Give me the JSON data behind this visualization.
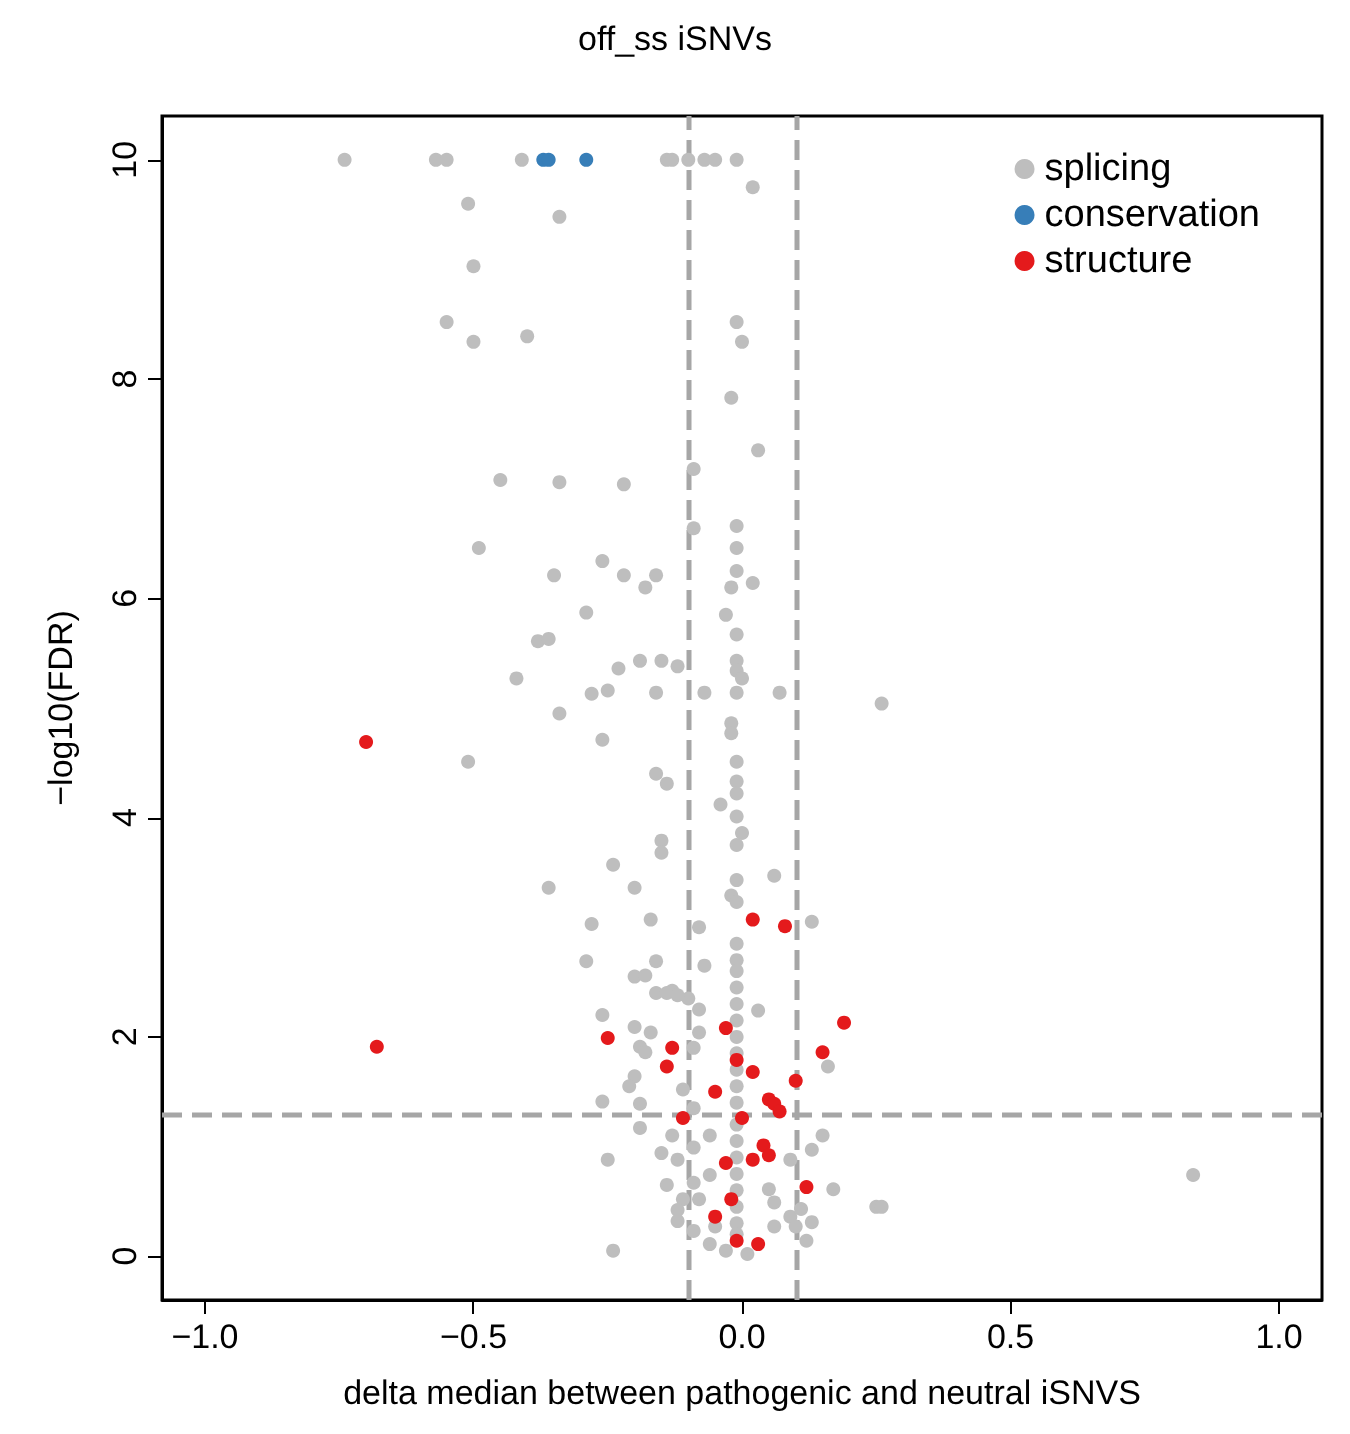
{
  "chart_data": {
    "type": "scatter",
    "title": "off_ss iSNVs",
    "xlabel": "delta median between pathogenic and neutral iSNVS",
    "ylabel": "−log10(FDR)",
    "xlim": [
      -1.08,
      1.08
    ],
    "ylim": [
      -0.4,
      10.4
    ],
    "xticks": [
      {
        "value": -1,
        "label": "−1.0"
      },
      {
        "value": -0.5,
        "label": "−0.5"
      },
      {
        "value": 0,
        "label": "0.0"
      },
      {
        "value": 0.5,
        "label": "0.5"
      },
      {
        "value": 1,
        "label": "1.0"
      }
    ],
    "yticks": [
      0,
      2,
      4,
      6,
      8,
      10
    ],
    "grid": false,
    "legend": "top right",
    "marker": "circle",
    "ref_lines": [
      {
        "axis": "x",
        "value": -0.1,
        "color": "#a6a6a6",
        "line_style": "dashed"
      },
      {
        "axis": "x",
        "value": 0.1,
        "color": "#a6a6a6",
        "line_style": "dashed"
      },
      {
        "axis": "y",
        "value": 1.3,
        "color": "#a6a6a6",
        "line_style": "dashed"
      }
    ],
    "series": [
      {
        "name": "splicing",
        "color": "#bebebe",
        "x": [
          -0.74,
          -0.57,
          -0.55,
          -0.41,
          -0.14,
          -0.13,
          -0.1,
          -0.07,
          -0.05,
          -0.01,
          0.02,
          -0.51,
          -0.34,
          -0.5,
          -0.55,
          -0.01,
          -0.5,
          -0.4,
          0.0,
          -0.02,
          0.03,
          -0.09,
          -0.45,
          -0.34,
          -0.22,
          -0.09,
          -0.01,
          -0.49,
          -0.01,
          -0.26,
          -0.35,
          -0.22,
          -0.16,
          -0.18,
          -0.01,
          -0.02,
          0.02,
          -0.29,
          -0.03,
          -0.38,
          -0.36,
          -0.01,
          -0.42,
          -0.23,
          -0.19,
          -0.15,
          -0.12,
          -0.01,
          -0.01,
          0.0,
          -0.28,
          -0.25,
          -0.16,
          -0.07,
          -0.01,
          0.07,
          0.26,
          -0.34,
          -0.51,
          -0.26,
          -0.02,
          -0.02,
          -0.01,
          -0.16,
          -0.14,
          -0.01,
          -0.01,
          -0.04,
          -0.01,
          0.0,
          -0.01,
          -0.15,
          -0.15,
          -0.24,
          0.06,
          -0.01,
          -0.36,
          -0.2,
          -0.02,
          -0.01,
          0.13,
          -0.28,
          -0.17,
          -0.08,
          -0.29,
          -0.16,
          -0.07,
          -0.2,
          -0.18,
          -0.16,
          -0.13,
          -0.1,
          -0.14,
          -0.12,
          -0.08,
          0.03,
          -0.26,
          -0.2,
          -0.17,
          -0.08,
          -0.19,
          -0.18,
          -0.09,
          0.16,
          -0.2,
          -0.21,
          -0.11,
          -0.26,
          -0.19,
          -0.09,
          -0.19,
          -0.13,
          -0.06,
          0.15,
          0.13,
          -0.15,
          -0.25,
          -0.12,
          -0.09,
          0.09,
          -0.14,
          -0.09,
          -0.06,
          0.05,
          0.17,
          -0.11,
          -0.08,
          0.06,
          0.25,
          0.26,
          -0.12,
          0.09,
          0.11,
          0.13,
          -0.12,
          -0.09,
          -0.05,
          0.06,
          0.1,
          -0.24,
          0.12,
          -0.06,
          0.01,
          -0.03,
          0.84,
          -0.01,
          -0.01,
          -0.01,
          -0.01,
          -0.01,
          -0.01,
          -0.01,
          -0.01,
          -0.01,
          -0.01,
          -0.01,
          -0.01,
          -0.01,
          -0.01,
          -0.01,
          -0.01,
          -0.01,
          -0.01,
          -0.01
        ],
        "values": [
          10,
          10,
          10,
          10,
          10,
          10,
          10,
          10,
          10,
          10,
          9.75,
          9.6,
          9.48,
          9.03,
          8.52,
          8.52,
          8.34,
          8.39,
          8.34,
          7.83,
          7.35,
          7.18,
          7.08,
          7.06,
          7.04,
          6.64,
          6.66,
          6.46,
          6.46,
          6.34,
          6.21,
          6.21,
          6.21,
          6.1,
          6.25,
          6.1,
          6.14,
          5.87,
          5.85,
          5.61,
          5.63,
          5.67,
          5.27,
          5.36,
          5.43,
          5.43,
          5.38,
          5.43,
          5.34,
          5.27,
          5.13,
          5.16,
          5.14,
          5.14,
          5.14,
          5.14,
          5.04,
          4.95,
          4.51,
          4.71,
          4.86,
          4.77,
          4.51,
          4.4,
          4.31,
          4.33,
          4.22,
          4.12,
          4.01,
          3.86,
          3.75,
          3.79,
          3.68,
          3.57,
          3.47,
          3.43,
          3.36,
          3.36,
          3.29,
          3.23,
          3.05,
          3.03,
          3.07,
          3.0,
          2.69,
          2.69,
          2.65,
          2.55,
          2.56,
          2.4,
          2.42,
          2.35,
          2.4,
          2.38,
          2.25,
          2.24,
          2.2,
          2.09,
          2.04,
          2.04,
          1.91,
          1.86,
          1.9,
          1.73,
          1.64,
          1.55,
          1.52,
          1.41,
          1.39,
          1.35,
          1.17,
          1.1,
          1.1,
          1.1,
          0.97,
          0.94,
          0.88,
          0.88,
          0.99,
          0.88,
          0.65,
          0.67,
          0.74,
          0.61,
          0.61,
          0.52,
          0.52,
          0.49,
          0.45,
          0.45,
          0.42,
          0.36,
          0.43,
          0.31,
          0.32,
          0.23,
          0.27,
          0.27,
          0.27,
          0.05,
          0.14,
          0.11,
          0.02,
          0.05,
          0.74,
          2.85,
          2.7,
          2.6,
          2.45,
          2.3,
          2.15,
          2.0,
          1.85,
          1.7,
          1.55,
          1.4,
          1.2,
          1.05,
          0.9,
          0.75,
          0.6,
          0.45,
          0.3,
          0.2
        ]
      },
      {
        "name": "conservation",
        "color": "#377eb8",
        "x": [
          -0.37,
          -0.36,
          -0.29
        ],
        "values": [
          10,
          10,
          10
        ]
      },
      {
        "name": "structure",
        "color": "#e41a1c",
        "x": [
          -0.7,
          -0.68,
          0.02,
          0.08,
          -0.03,
          0.19,
          -0.25,
          -0.13,
          0.15,
          -0.14,
          -0.01,
          0.02,
          0.1,
          -0.05,
          0.05,
          0.06,
          0.07,
          -0.11,
          0.0,
          0.04,
          0.05,
          -0.03,
          0.02,
          0.12,
          -0.02,
          -0.05,
          -0.01,
          0.03
        ],
        "values": [
          4.69,
          1.91,
          3.07,
          3.01,
          2.08,
          2.13,
          1.99,
          1.9,
          1.86,
          1.73,
          1.79,
          1.68,
          1.6,
          1.5,
          1.43,
          1.39,
          1.32,
          1.26,
          1.26,
          1.01,
          0.92,
          0.85,
          0.88,
          0.63,
          0.52,
          0.36,
          0.14,
          0.11
        ]
      }
    ]
  }
}
